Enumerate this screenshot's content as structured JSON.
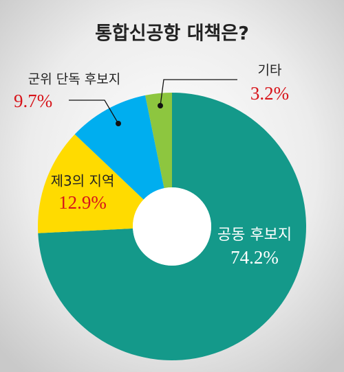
{
  "chart_data": {
    "type": "donut",
    "title": "통합신공항 대책은?",
    "categories": [
      "공동 후보지",
      "제3의 지역",
      "군위 단독 후보지",
      "기타"
    ],
    "values": [
      74.2,
      12.9,
      9.7,
      3.2
    ],
    "value_labels": [
      "74.2%",
      "12.9%",
      "9.7%",
      "3.2%"
    ],
    "colors": [
      "#14998a",
      "#ffdb00",
      "#00aeef",
      "#8dc63f"
    ]
  }
}
